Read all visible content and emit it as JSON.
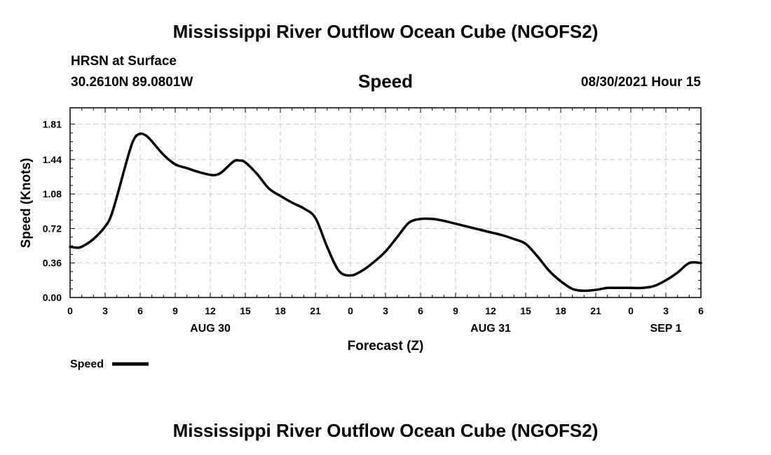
{
  "chart_data": {
    "type": "line",
    "title": "Mississippi River Outflow Ocean Cube (NGOFS2)",
    "footer_title": "Mississippi River Outflow Ocean Cube (NGOFS2)",
    "station": "HRSN at Surface",
    "coordinates": "30.2610N  89.0801W",
    "variable": "Speed",
    "datetime": "08/30/2021 Hour 15",
    "xlabel": "Forecast (Z)",
    "ylabel": "Speed (Knots)",
    "ylim": [
      0,
      1.98
    ],
    "yticks": [
      0.0,
      0.36,
      0.72,
      1.08,
      1.44,
      1.81
    ],
    "ytick_labels": [
      "0.00",
      "0.36",
      "0.72",
      "1.08",
      "1.44",
      "1.81"
    ],
    "xlim": [
      0,
      54
    ],
    "xticks": [
      0,
      3,
      6,
      9,
      12,
      15,
      18,
      21,
      24,
      27,
      30,
      33,
      36,
      39,
      42,
      45,
      48,
      51,
      54
    ],
    "xtick_labels": [
      "0",
      "3",
      "6",
      "9",
      "12",
      "15",
      "18",
      "21",
      "0",
      "3",
      "6",
      "9",
      "12",
      "15",
      "18",
      "21",
      "0",
      "3",
      "6"
    ],
    "date_labels": [
      {
        "x": 12,
        "label": "AUG 30"
      },
      {
        "x": 36,
        "label": "AUG 31"
      },
      {
        "x": 51,
        "label": "SEP 1"
      }
    ],
    "grid": true,
    "legend_position": "bottom-left",
    "series": [
      {
        "name": "Speed",
        "color": "#000000",
        "x": [
          0,
          0.5,
          1,
          2,
          3,
          3.5,
          4,
          5,
          5.5,
          6,
          6.5,
          7,
          8,
          9,
          10,
          11,
          12,
          12.5,
          13,
          14,
          14.5,
          15,
          16,
          17,
          18,
          19,
          20,
          21,
          22,
          23,
          24,
          25,
          26,
          27,
          28,
          29,
          30,
          31,
          32,
          33,
          34,
          35,
          36,
          37,
          38,
          39,
          40,
          41,
          42,
          43,
          44,
          45,
          46,
          47,
          48,
          49,
          50,
          51,
          52,
          53,
          54
        ],
        "y": [
          0.53,
          0.52,
          0.53,
          0.61,
          0.74,
          0.85,
          1.05,
          1.49,
          1.66,
          1.71,
          1.69,
          1.63,
          1.49,
          1.39,
          1.35,
          1.31,
          1.28,
          1.28,
          1.31,
          1.42,
          1.43,
          1.41,
          1.29,
          1.14,
          1.06,
          0.99,
          0.93,
          0.83,
          0.53,
          0.28,
          0.23,
          0.28,
          0.37,
          0.48,
          0.63,
          0.78,
          0.82,
          0.82,
          0.8,
          0.77,
          0.74,
          0.71,
          0.68,
          0.65,
          0.61,
          0.56,
          0.43,
          0.28,
          0.17,
          0.09,
          0.07,
          0.08,
          0.1,
          0.1,
          0.1,
          0.1,
          0.12,
          0.18,
          0.26,
          0.36,
          0.36
        ]
      }
    ]
  }
}
